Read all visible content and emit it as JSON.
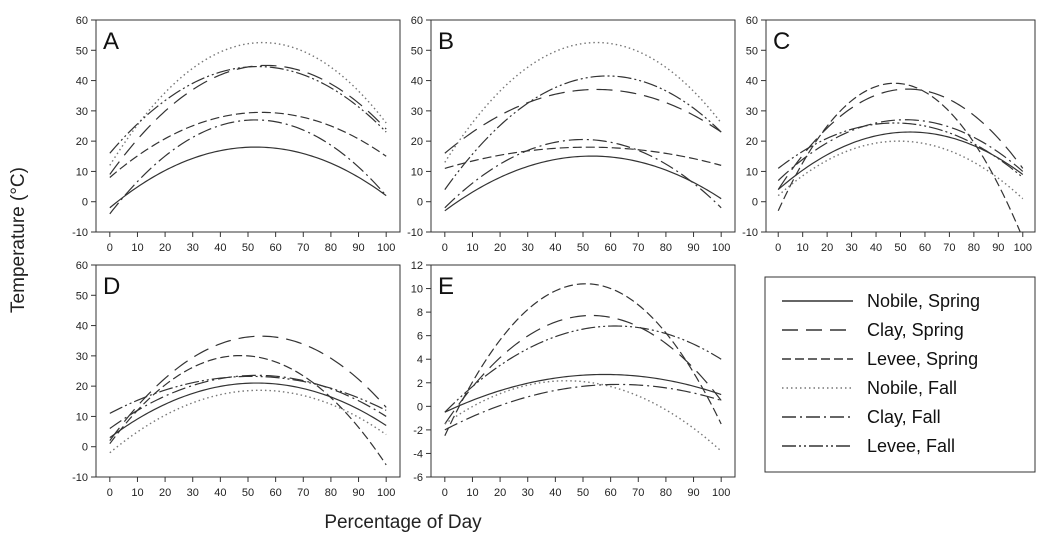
{
  "figure": {
    "ylabel": "Temperature (°C)",
    "xlabel": "Percentage of Day"
  },
  "legend": [
    {
      "name": "Nobile, Spring",
      "dash": ""
    },
    {
      "name": "Clay, Spring",
      "dash": "16,8"
    },
    {
      "name": "Levee, Spring",
      "dash": "9,4"
    },
    {
      "name": "Nobile, Fall",
      "dash": "1.5,3"
    },
    {
      "name": "Clay, Fall",
      "dash": "14,4,2,4"
    },
    {
      "name": "Levee, Fall",
      "dash": "14,3,2,3,2,3"
    }
  ],
  "chart_data": [
    {
      "type": "line",
      "label": "A",
      "x_ticks": [
        0,
        10,
        20,
        30,
        40,
        50,
        60,
        70,
        80,
        90,
        100
      ],
      "y_ticks": [
        -10,
        0,
        10,
        20,
        30,
        40,
        50,
        60
      ],
      "ylim": [
        -10,
        60
      ],
      "xlim": [
        -5,
        105
      ],
      "series": [
        {
          "name": "Nobile, Spring",
          "points": [
            [
              0,
              -2
            ],
            [
              55,
              18
            ],
            [
              100,
              2
            ]
          ]
        },
        {
          "name": "Clay, Spring",
          "points": [
            [
              0,
              9
            ],
            [
              57,
              45
            ],
            [
              100,
              24
            ]
          ]
        },
        {
          "name": "Levee, Spring",
          "points": [
            [
              0,
              8
            ],
            [
              55,
              29.5
            ],
            [
              100,
              15
            ]
          ]
        },
        {
          "name": "Nobile, Fall",
          "points": [
            [
              0,
              12
            ],
            [
              57,
              52.5
            ],
            [
              100,
              26
            ]
          ]
        },
        {
          "name": "Clay, Fall",
          "points": [
            [
              0,
              -4
            ],
            [
              52,
              27
            ],
            [
              100,
              2
            ]
          ]
        },
        {
          "name": "Levee, Fall",
          "points": [
            [
              0,
              16
            ],
            [
              50,
              44.5
            ],
            [
              100,
              23
            ]
          ]
        }
      ]
    },
    {
      "type": "line",
      "label": "B",
      "x_ticks": [
        0,
        10,
        20,
        30,
        40,
        50,
        60,
        70,
        80,
        90,
        100
      ],
      "y_ticks": [
        -10,
        0,
        10,
        20,
        30,
        40,
        50,
        60
      ],
      "ylim": [
        -10,
        60
      ],
      "xlim": [
        -5,
        105
      ],
      "series": [
        {
          "name": "Nobile, Spring",
          "points": [
            [
              0,
              -3
            ],
            [
              50,
              15
            ],
            [
              100,
              1
            ]
          ]
        },
        {
          "name": "Clay, Spring",
          "points": [
            [
              0,
              16
            ],
            [
              52,
              37
            ],
            [
              100,
              23
            ]
          ]
        },
        {
          "name": "Levee, Spring",
          "points": [
            [
              0,
              11
            ],
            [
              50,
              18
            ],
            [
              100,
              12
            ]
          ]
        },
        {
          "name": "Nobile, Fall",
          "points": [
            [
              0,
              13
            ],
            [
              57,
              52.5
            ],
            [
              100,
              26
            ]
          ]
        },
        {
          "name": "Clay, Fall",
          "points": [
            [
              0,
              -2
            ],
            [
              52,
              20.5
            ],
            [
              100,
              -2
            ]
          ]
        },
        {
          "name": "Levee, Fall",
          "points": [
            [
              0,
              4
            ],
            [
              60,
              41.5
            ],
            [
              100,
              23
            ]
          ]
        }
      ]
    },
    {
      "type": "line",
      "label": "C",
      "x_ticks": [
        0,
        10,
        20,
        30,
        40,
        50,
        60,
        70,
        80,
        90,
        100
      ],
      "y_ticks": [
        -10,
        0,
        10,
        20,
        30,
        40,
        50,
        60
      ],
      "ylim": [
        -10,
        60
      ],
      "xlim": [
        -5,
        105
      ],
      "series": [
        {
          "name": "Nobile, Spring",
          "points": [
            [
              0,
              4
            ],
            [
              55,
              23
            ],
            [
              100,
              9
            ]
          ]
        },
        {
          "name": "Clay, Spring",
          "points": [
            [
              0,
              4
            ],
            [
              57,
              37
            ],
            [
              100,
              11
            ]
          ]
        },
        {
          "name": "Levee, Spring",
          "points": [
            [
              0,
              -3
            ],
            [
              50,
              39
            ],
            [
              100,
              -12
            ]
          ]
        },
        {
          "name": "Nobile, Fall",
          "points": [
            [
              0,
              2
            ],
            [
              50,
              20
            ],
            [
              100,
              1
            ]
          ]
        },
        {
          "name": "Clay, Fall",
          "points": [
            [
              0,
              7
            ],
            [
              55,
              27
            ],
            [
              100,
              10
            ]
          ]
        },
        {
          "name": "Levee, Fall",
          "points": [
            [
              0,
              11
            ],
            [
              60,
              25
            ],
            [
              100,
              8
            ]
          ]
        }
      ]
    },
    {
      "type": "line",
      "label": "D",
      "x_ticks": [
        0,
        10,
        20,
        30,
        40,
        50,
        60,
        70,
        80,
        90,
        100
      ],
      "y_ticks": [
        -10,
        0,
        10,
        20,
        30,
        40,
        50,
        60
      ],
      "ylim": [
        -10,
        60
      ],
      "xlim": [
        -5,
        105
      ],
      "series": [
        {
          "name": "Nobile, Spring",
          "points": [
            [
              0,
              3
            ],
            [
              55,
              21
            ],
            [
              100,
              7
            ]
          ]
        },
        {
          "name": "Clay, Spring",
          "points": [
            [
              0,
              2
            ],
            [
              55,
              36.5
            ],
            [
              100,
              13
            ]
          ]
        },
        {
          "name": "Levee, Spring",
          "points": [
            [
              0,
              1
            ],
            [
              50,
              30
            ],
            [
              100,
              -6
            ]
          ]
        },
        {
          "name": "Nobile, Fall",
          "points": [
            [
              0,
              -2
            ],
            [
              50,
              18.5
            ],
            [
              100,
              4
            ]
          ]
        },
        {
          "name": "Clay, Fall",
          "points": [
            [
              0,
              6
            ],
            [
              50,
              23.5
            ],
            [
              100,
              10
            ]
          ]
        },
        {
          "name": "Levee, Fall",
          "points": [
            [
              0,
              11
            ],
            [
              58,
              23
            ],
            [
              100,
              12
            ]
          ]
        }
      ]
    },
    {
      "type": "line",
      "label": "E",
      "x_ticks": [
        0,
        10,
        20,
        30,
        40,
        50,
        60,
        70,
        80,
        90,
        100
      ],
      "y_ticks": [
        -6,
        -4,
        -2,
        0,
        2,
        4,
        6,
        8,
        10,
        12
      ],
      "ylim": [
        -6,
        12
      ],
      "xlim": [
        -5,
        105
      ],
      "series": [
        {
          "name": "Nobile, Spring",
          "points": [
            [
              0,
              -0.5
            ],
            [
              60,
              2.7
            ],
            [
              100,
              1
            ]
          ]
        },
        {
          "name": "Clay, Spring",
          "points": [
            [
              0,
              -1.5
            ],
            [
              55,
              7.7
            ],
            [
              100,
              0.5
            ]
          ]
        },
        {
          "name": "Levee, Spring",
          "points": [
            [
              0,
              -2.5
            ],
            [
              50,
              10.4
            ],
            [
              100,
              -1.5
            ]
          ]
        },
        {
          "name": "Nobile, Fall",
          "points": [
            [
              0,
              -1.5
            ],
            [
              50,
              2.1
            ],
            [
              100,
              -3.8
            ]
          ]
        },
        {
          "name": "Clay, Fall",
          "points": [
            [
              0,
              -2
            ],
            [
              55,
              1.8
            ],
            [
              100,
              0.5
            ]
          ]
        },
        {
          "name": "Levee, Fall",
          "points": [
            [
              0,
              -0.5
            ],
            [
              65,
              6.8
            ],
            [
              100,
              4
            ]
          ]
        }
      ]
    }
  ]
}
